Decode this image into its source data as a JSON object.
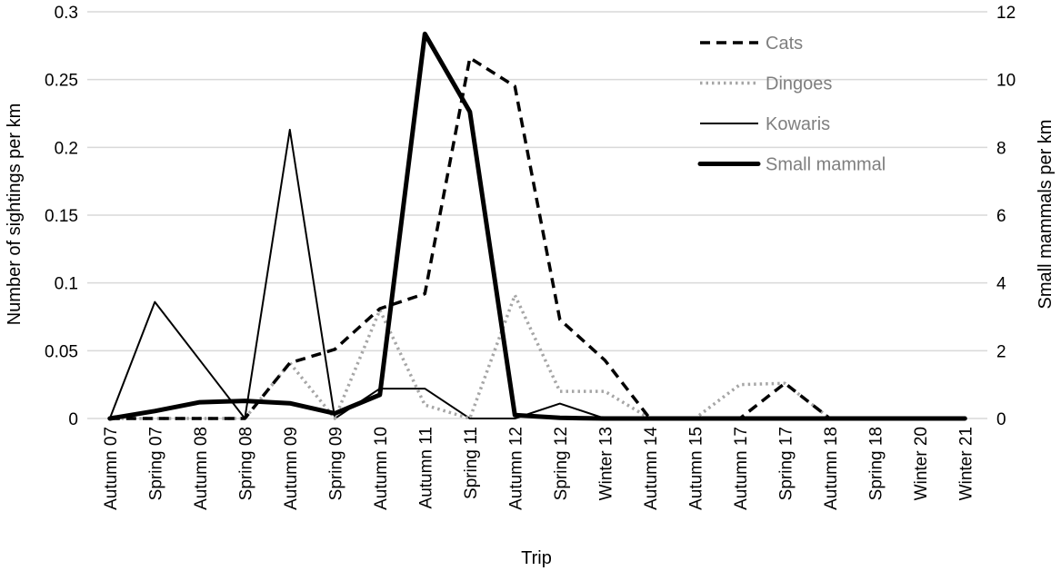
{
  "chart_data": {
    "type": "line",
    "title": "",
    "xlabel": "Trip",
    "ylabel": "Number of sightings per km",
    "y2label": "Small mammals per km",
    "ylim": [
      0,
      0.3
    ],
    "y2lim": [
      0,
      12
    ],
    "yticks": [
      "0",
      "0.05",
      "0.1",
      "0.15",
      "0.2",
      "0.25",
      "0.3"
    ],
    "y2ticks": [
      "0",
      "2",
      "4",
      "6",
      "8",
      "10",
      "12"
    ],
    "grid": true,
    "legend_position": "top-right",
    "categories": [
      "Autumn 07",
      "Spring 07",
      "Autumn 08",
      "Spring 08",
      "Autumn 09",
      "Spring 09",
      "Autumn 10",
      "Autumn 11",
      "Spring 11",
      "Autumn 12",
      "Spring 12",
      "Winter 13",
      "Autumn 14",
      "Autumn 15",
      "Autumn 17",
      "Spring 17",
      "Autumn 18",
      "Spring 18",
      "Winter 20",
      "Winter 21"
    ],
    "series": [
      {
        "name": "Cats",
        "axis": "left",
        "style": "dashed",
        "color": "#000000",
        "values": [
          0,
          0,
          0,
          0,
          0.041,
          0.051,
          0.081,
          0.092,
          0.266,
          0.245,
          0.073,
          0.043,
          0,
          0,
          0,
          0.026,
          0,
          0,
          0,
          0
        ]
      },
      {
        "name": "Dingoes",
        "axis": "left",
        "style": "dotted",
        "color": "#a6a6a6",
        "values": [
          0,
          0,
          0,
          0,
          0.041,
          0,
          0.08,
          0.01,
          0,
          0.091,
          0.02,
          0.02,
          0,
          0,
          0.025,
          0.026,
          0,
          0,
          0,
          0
        ]
      },
      {
        "name": "Kowaris",
        "axis": "left",
        "style": "thin",
        "color": "#000000",
        "values": [
          0,
          0.086,
          0.043,
          0,
          0.213,
          0,
          0.022,
          0.022,
          0,
          0,
          0.011,
          0,
          0,
          0,
          0,
          0,
          0,
          0,
          0,
          0
        ]
      },
      {
        "name": "Small mammal",
        "axis": "right",
        "style": "thick",
        "color": "#000000",
        "values": [
          0,
          0.22,
          0.48,
          0.52,
          0.45,
          0.15,
          0.7,
          11.35,
          9.05,
          0.1,
          0.02,
          0,
          0,
          0,
          0,
          0,
          0,
          0,
          0,
          0
        ]
      }
    ]
  }
}
